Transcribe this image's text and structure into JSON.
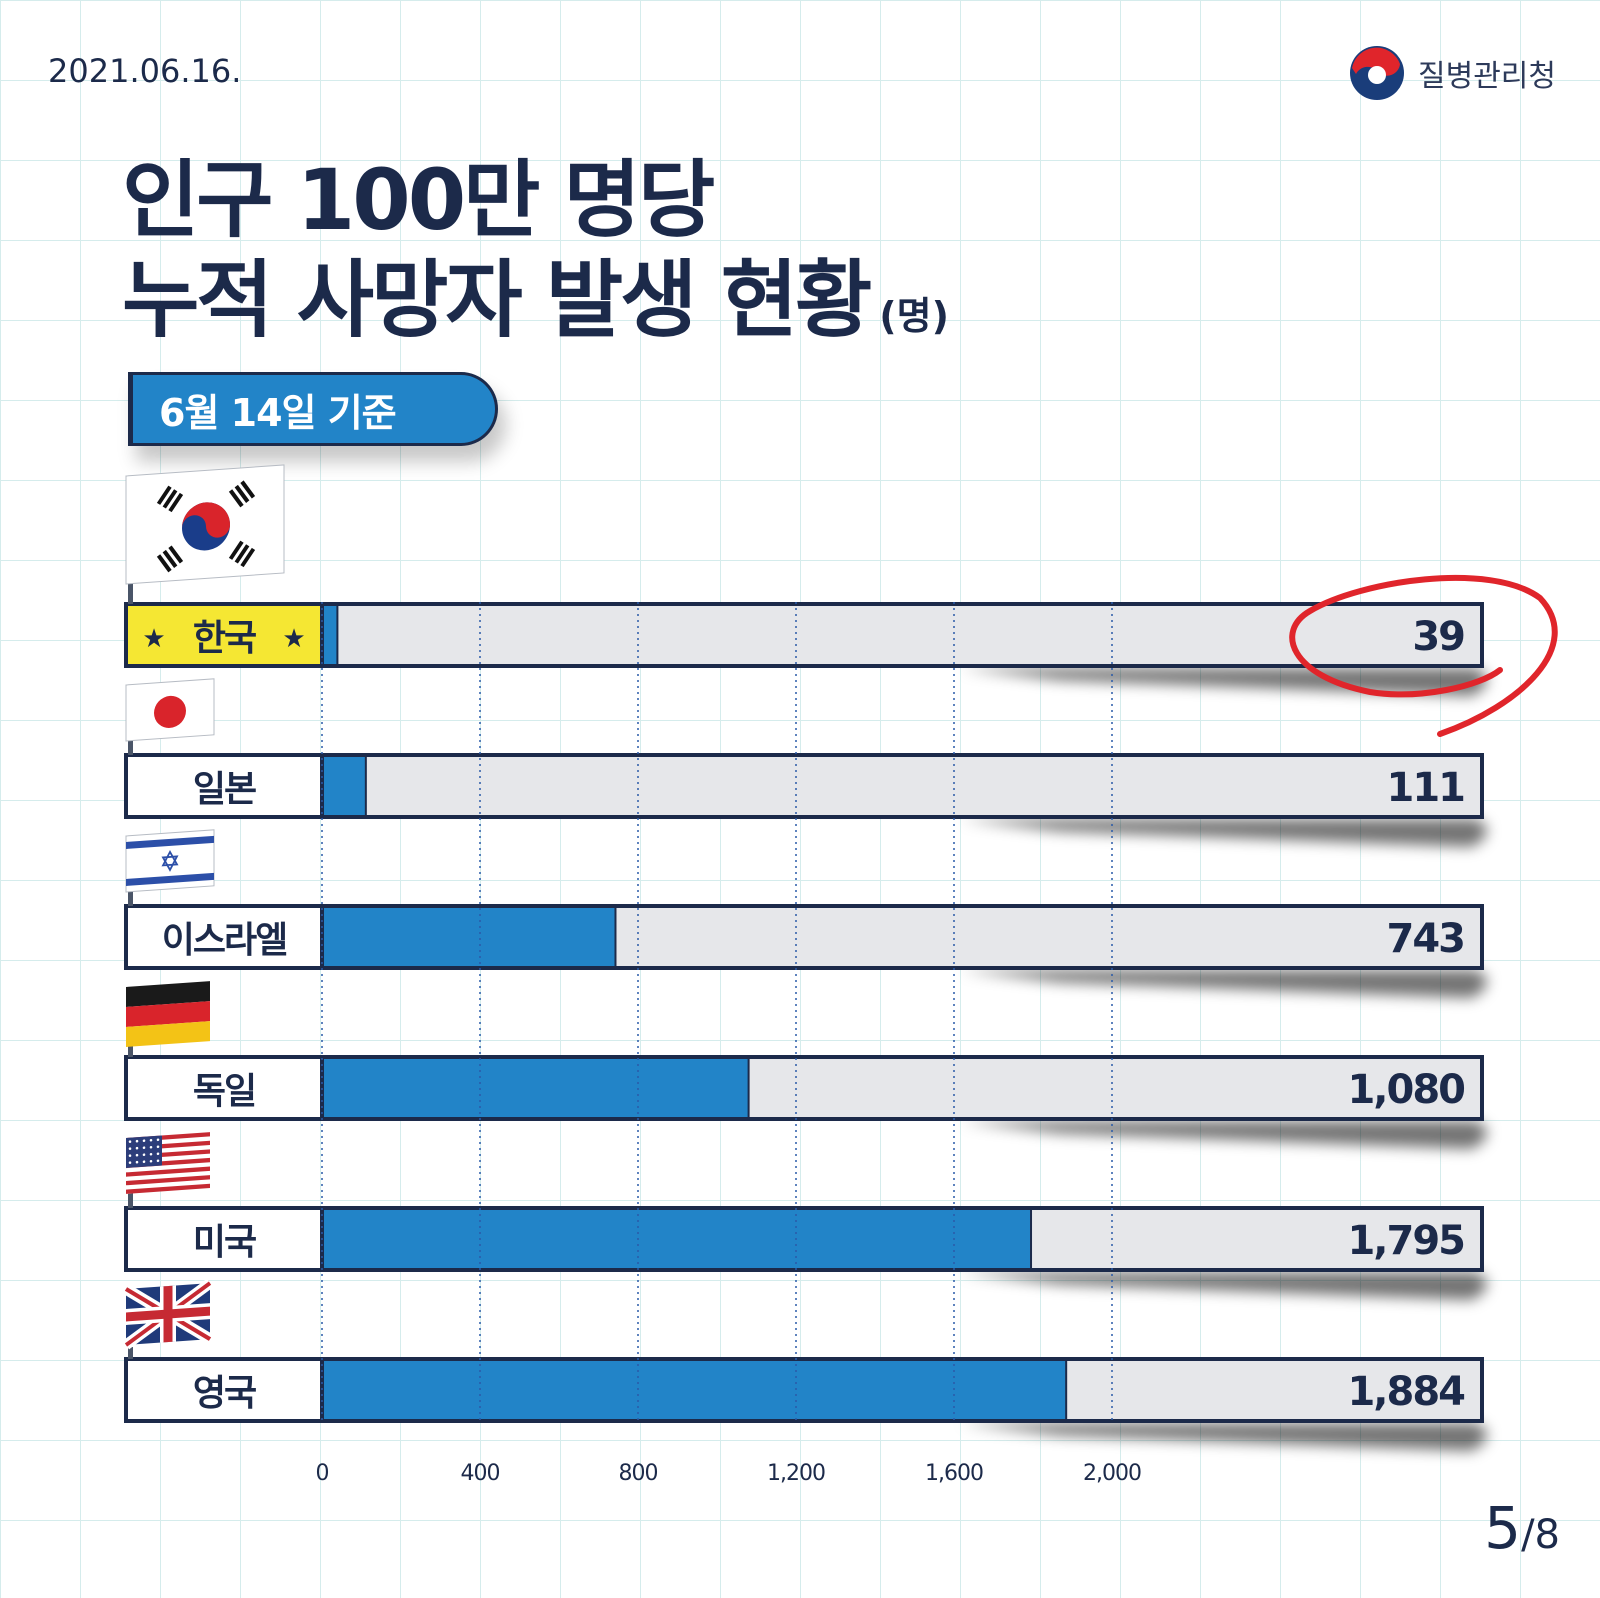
{
  "header": {
    "date": "2021.06.16.",
    "org_name": "질병관리청"
  },
  "title": {
    "line1": "인구 100만 명당",
    "line2": "누적 사망자 발생 현황",
    "unit": "(명)"
  },
  "badge": "6월 14일 기준",
  "pager": {
    "current": "5",
    "total": "/8"
  },
  "colors": {
    "navy": "#1c2a4a",
    "bar_blue": "#2284c8",
    "track_gray": "#e6e7ea",
    "highlight_yellow": "#f5e733",
    "circle_red": "#e0252b"
  },
  "chart_data": {
    "type": "bar",
    "orientation": "horizontal",
    "categories": [
      "한국",
      "일본",
      "이스라엘",
      "독일",
      "미국",
      "영국"
    ],
    "flags": [
      "korea-flag",
      "japan-flag",
      "israel-flag",
      "germany-flag",
      "usa-flag",
      "uk-flag"
    ],
    "values": [
      39,
      111,
      743,
      1080,
      1795,
      1884
    ],
    "value_labels": [
      "39",
      "111",
      "743",
      "1,080",
      "1,795",
      "1,884"
    ],
    "highlight": "한국",
    "highlight_marker": "★",
    "xticks": [
      0,
      400,
      800,
      1200,
      1600,
      2000
    ],
    "xtick_labels": [
      "0",
      "400",
      "800",
      "1,200",
      "1,600",
      "2,000"
    ],
    "xlim": [
      0,
      2000
    ],
    "grid": "dotted vertical"
  }
}
